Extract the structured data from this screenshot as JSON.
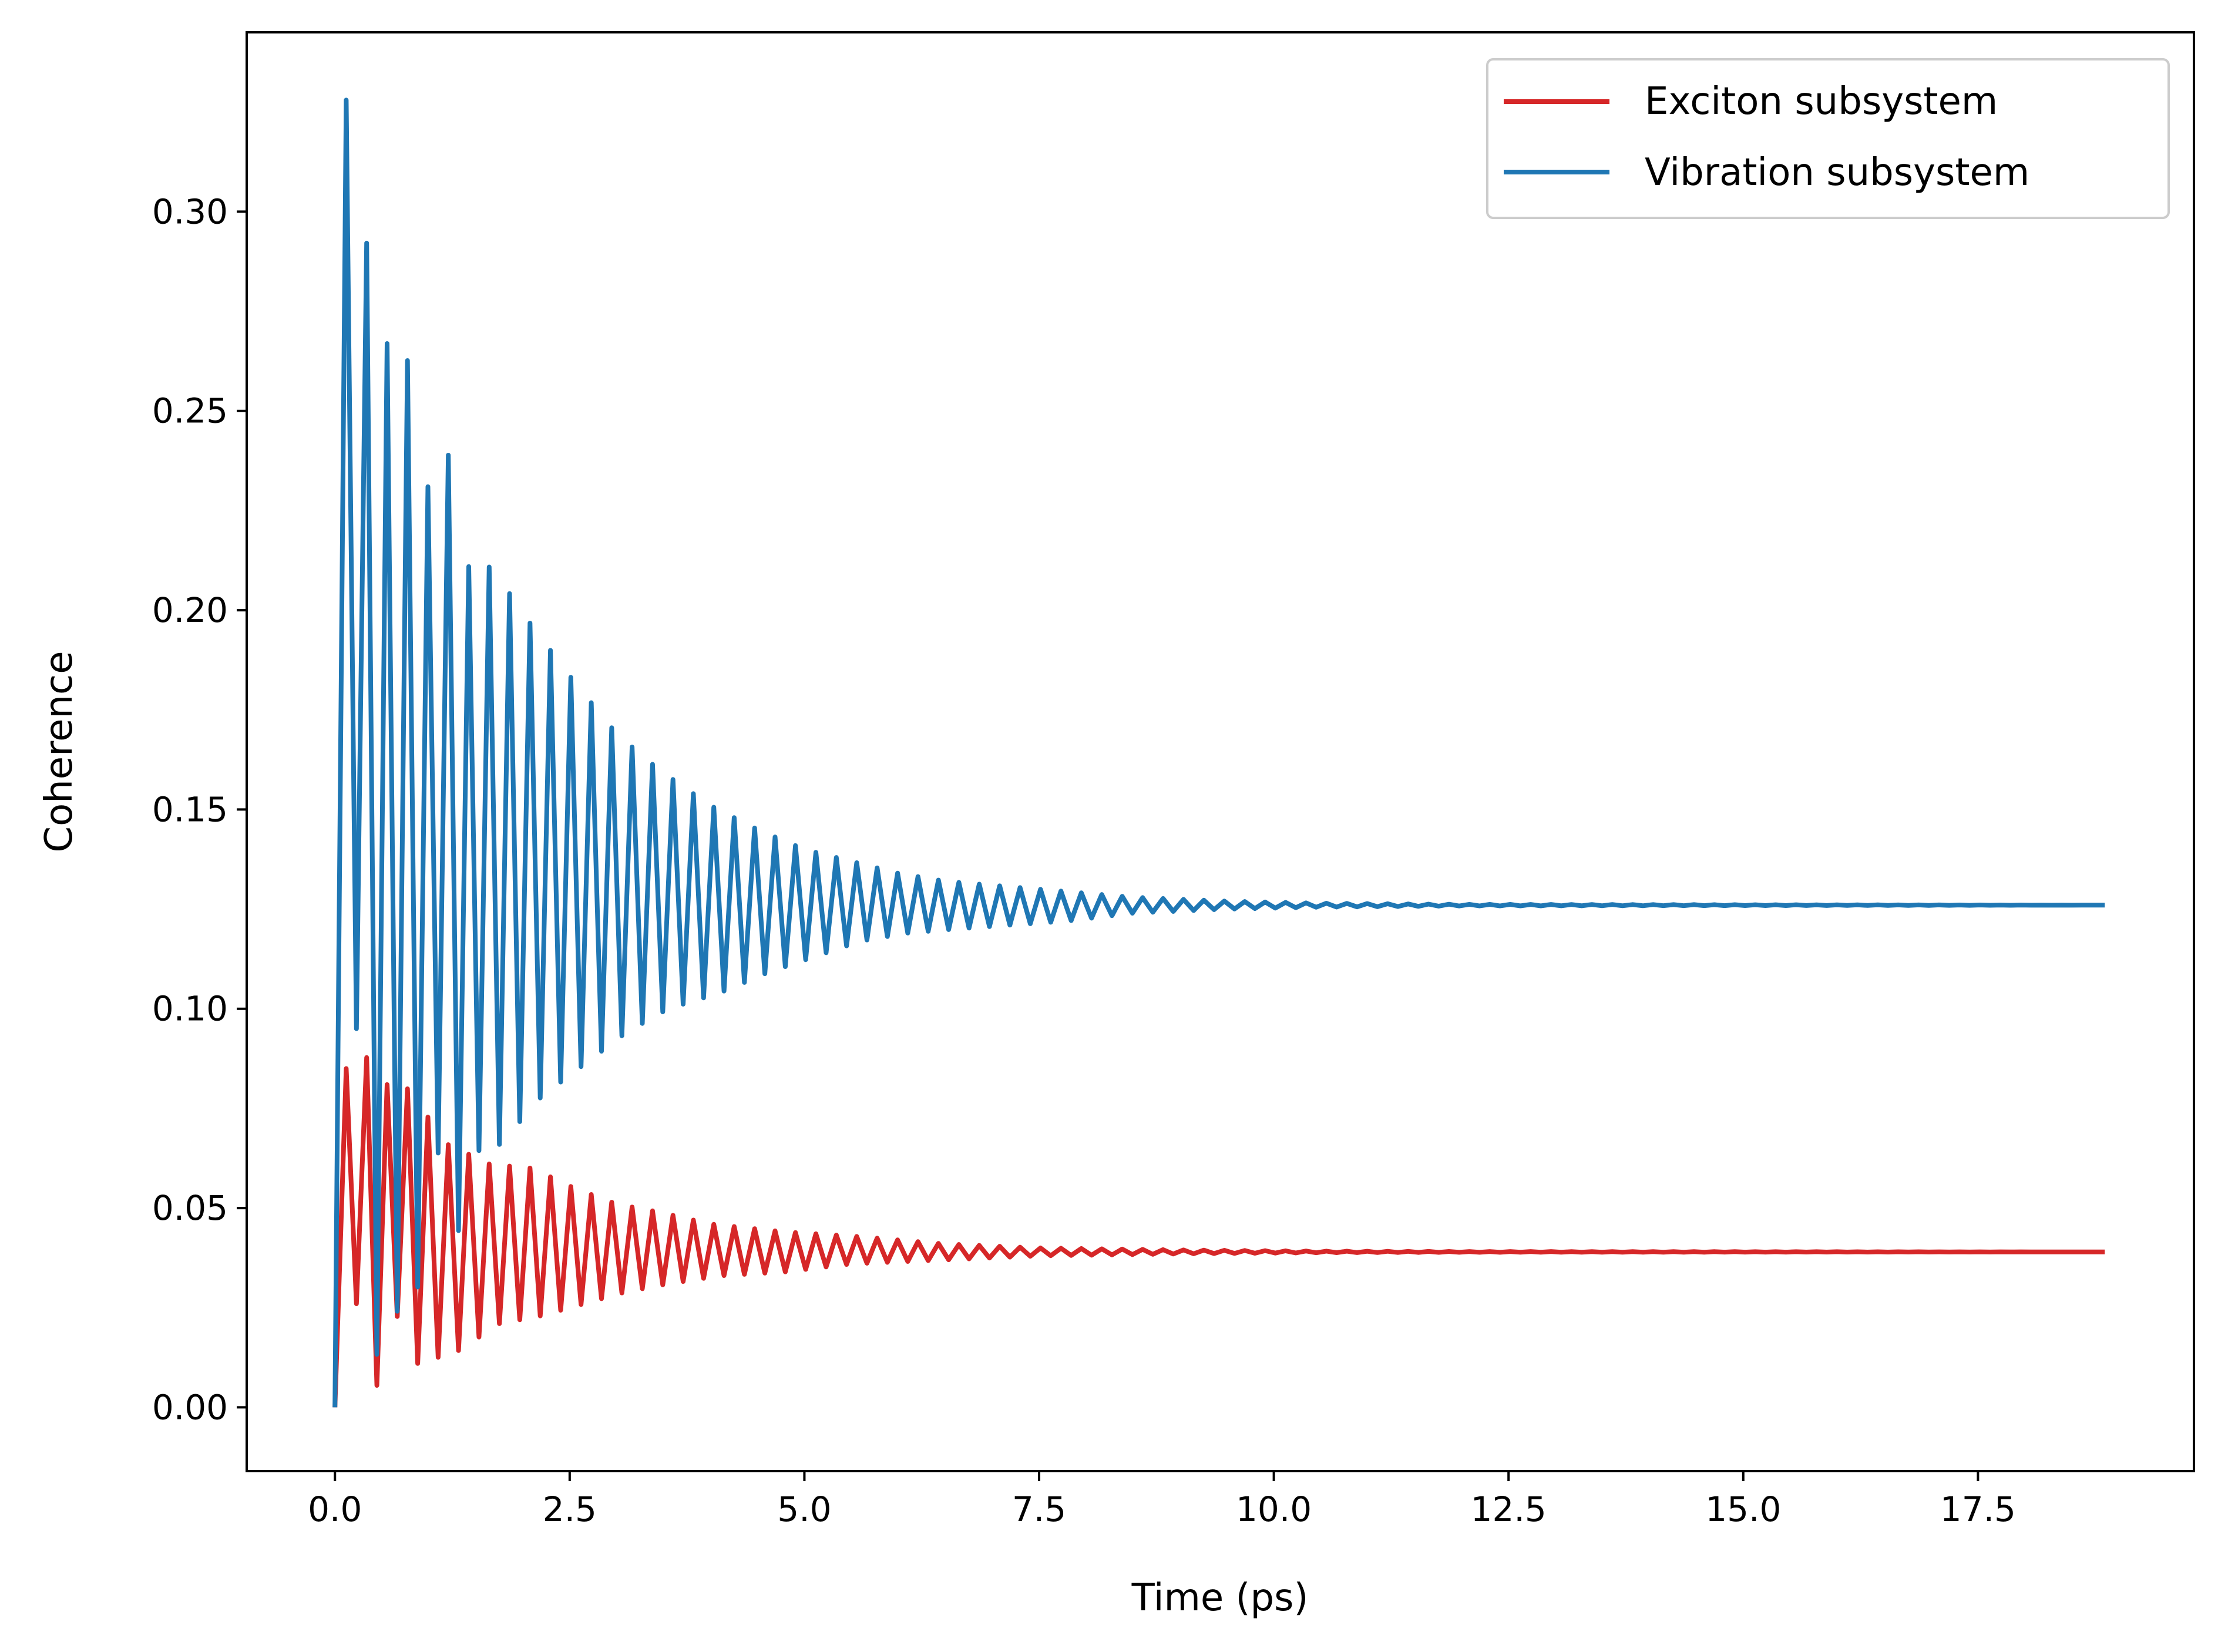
{
  "chart_data": {
    "type": "line",
    "title": "",
    "xlabel": "Time (ps)",
    "ylabel": "Coherence",
    "xlim": [
      -0.94,
      19.8
    ],
    "ylim": [
      -0.016,
      0.345
    ],
    "xticks": [
      0.0,
      2.5,
      5.0,
      7.5,
      10.0,
      12.5,
      15.0,
      17.5
    ],
    "xtick_labels": [
      "0.0",
      "2.5",
      "5.0",
      "7.5",
      "10.0",
      "12.5",
      "15.0",
      "17.5"
    ],
    "yticks": [
      0.0,
      0.05,
      0.1,
      0.15,
      0.2,
      0.25,
      0.3
    ],
    "ytick_labels": [
      "0.00",
      "0.05",
      "0.10",
      "0.15",
      "0.20",
      "0.25",
      "0.30"
    ],
    "grid": false,
    "legend_position": "top-right",
    "x_end": 18.85,
    "oscillation_period": 0.2175,
    "series": [
      {
        "name": "Exciton subsystem",
        "color": "#d62728",
        "steady_value": 0.039,
        "envelope_peaks": [
          [
            0.12,
            0.085
          ],
          [
            0.33,
            0.088
          ],
          [
            0.55,
            0.081
          ],
          [
            0.77,
            0.08
          ],
          [
            1.2,
            0.066
          ],
          [
            1.65,
            0.061
          ],
          [
            2.1,
            0.06
          ],
          [
            2.55,
            0.055
          ],
          [
            3.0,
            0.051
          ],
          [
            3.45,
            0.049
          ],
          [
            4.0,
            0.046
          ],
          [
            4.8,
            0.044
          ],
          [
            5.5,
            0.043
          ],
          [
            6.5,
            0.041
          ],
          [
            7.5,
            0.04
          ],
          [
            9.0,
            0.0395
          ],
          [
            10.5,
            0.0392
          ],
          [
            12.0,
            0.0391
          ],
          [
            18.85,
            0.039
          ]
        ],
        "envelope_troughs": [
          [
            0.23,
            0.026
          ],
          [
            0.44,
            0.005
          ],
          [
            0.66,
            0.023
          ],
          [
            0.88,
            0.011
          ],
          [
            1.3,
            0.014
          ],
          [
            1.75,
            0.021
          ],
          [
            2.2,
            0.023
          ],
          [
            2.65,
            0.026
          ],
          [
            3.1,
            0.029
          ],
          [
            3.55,
            0.031
          ],
          [
            4.1,
            0.033
          ],
          [
            4.8,
            0.034
          ],
          [
            5.5,
            0.036
          ],
          [
            6.5,
            0.037
          ],
          [
            7.5,
            0.038
          ],
          [
            9.0,
            0.0385
          ],
          [
            10.5,
            0.0388
          ],
          [
            12.0,
            0.0389
          ],
          [
            18.85,
            0.039
          ]
        ]
      },
      {
        "name": "Vibration subsystem",
        "color": "#1f77b4",
        "steady_value": 0.126,
        "envelope_peaks": [
          [
            0.12,
            0.328
          ],
          [
            0.33,
            0.293
          ],
          [
            0.55,
            0.267
          ],
          [
            0.77,
            0.263
          ],
          [
            0.99,
            0.231
          ],
          [
            1.21,
            0.239
          ],
          [
            1.44,
            0.209
          ],
          [
            1.66,
            0.211
          ],
          [
            2.1,
            0.196
          ],
          [
            2.55,
            0.182
          ],
          [
            3.0,
            0.169
          ],
          [
            3.45,
            0.16
          ],
          [
            4.0,
            0.151
          ],
          [
            4.5,
            0.145
          ],
          [
            5.0,
            0.14
          ],
          [
            5.5,
            0.137
          ],
          [
            6.0,
            0.134
          ],
          [
            6.5,
            0.132
          ],
          [
            7.0,
            0.131
          ],
          [
            7.5,
            0.13
          ],
          [
            8.5,
            0.128
          ],
          [
            9.5,
            0.127
          ],
          [
            10.5,
            0.1265
          ],
          [
            12.0,
            0.1262
          ],
          [
            18.85,
            0.126
          ]
        ],
        "envelope_troughs": [
          [
            0.23,
            0.095
          ],
          [
            0.44,
            0.013
          ],
          [
            0.66,
            0.024
          ],
          [
            0.88,
            0.03
          ],
          [
            1.1,
            0.064
          ],
          [
            1.32,
            0.044
          ],
          [
            1.54,
            0.065
          ],
          [
            1.76,
            0.066
          ],
          [
            2.2,
            0.078
          ],
          [
            2.65,
            0.086
          ],
          [
            3.1,
            0.094
          ],
          [
            3.55,
            0.1
          ],
          [
            4.1,
            0.104
          ],
          [
            4.6,
            0.109
          ],
          [
            5.1,
            0.113
          ],
          [
            5.6,
            0.117
          ],
          [
            6.1,
            0.119
          ],
          [
            6.6,
            0.12
          ],
          [
            7.2,
            0.121
          ],
          [
            7.8,
            0.122
          ],
          [
            8.5,
            0.124
          ],
          [
            9.5,
            0.125
          ],
          [
            10.5,
            0.1255
          ],
          [
            12.0,
            0.1258
          ],
          [
            18.85,
            0.126
          ]
        ]
      }
    ]
  }
}
